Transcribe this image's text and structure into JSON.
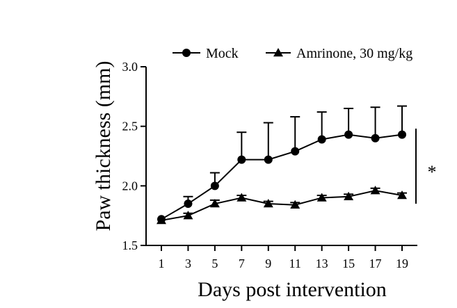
{
  "chart_data": {
    "type": "line",
    "title": "",
    "xlabel": "Days post intervention",
    "ylabel": "Paw thickness (mm)",
    "x": [
      1,
      3,
      5,
      7,
      9,
      11,
      13,
      15,
      17,
      19
    ],
    "xlim": [
      0,
      20
    ],
    "ylim": [
      1.5,
      3.0
    ],
    "xticks": [
      "1",
      "3",
      "5",
      "7",
      "9",
      "11",
      "13",
      "15",
      "17",
      "19"
    ],
    "yticks": [
      "1.5",
      "2.0",
      "2.5",
      "3.0"
    ],
    "series": [
      {
        "name": "Mock",
        "marker": "circle",
        "values": [
          1.72,
          1.85,
          2.0,
          2.22,
          2.22,
          2.29,
          2.39,
          2.43,
          2.4,
          2.43
        ],
        "error_upper": [
          0.0,
          0.06,
          0.11,
          0.23,
          0.31,
          0.29,
          0.23,
          0.22,
          0.26,
          0.24
        ]
      },
      {
        "name": "Amrinone, 30 mg/kg",
        "marker": "triangle",
        "values": [
          1.71,
          1.75,
          1.85,
          1.9,
          1.85,
          1.84,
          1.9,
          1.91,
          1.96,
          1.92
        ],
        "error_upper": [
          0.0,
          0.02,
          0.03,
          0.02,
          0.02,
          0.02,
          0.02,
          0.02,
          0.02,
          0.02
        ]
      }
    ],
    "significance": "*",
    "legend": "top",
    "grid": false,
    "colors": {
      "line": "#000000",
      "background": "#ffffff"
    }
  }
}
